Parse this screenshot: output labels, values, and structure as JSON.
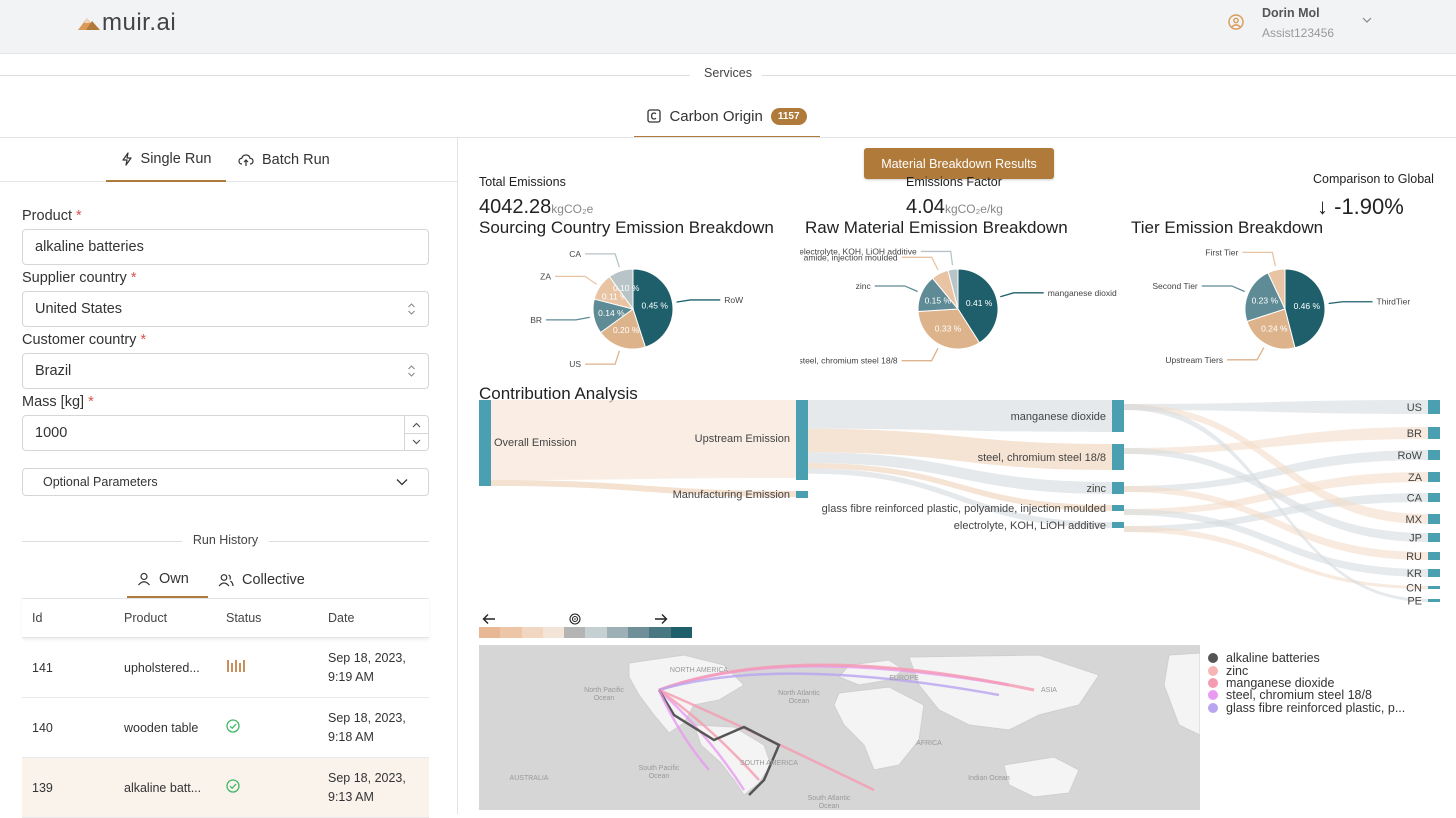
{
  "header": {
    "logo": "muir.ai",
    "user_name": "Dorin Mol",
    "user_sub": "Assist123456"
  },
  "services": {
    "label": "Services",
    "tab_label": "Carbon Origin",
    "tab_badge": "1157"
  },
  "run_tabs": {
    "single": "Single Run",
    "batch": "Batch Run"
  },
  "form": {
    "product_label": "Product",
    "product_value": "alkaline batteries",
    "supplier_label": "Supplier country",
    "supplier_value": "United States",
    "customer_label": "Customer country",
    "customer_value": "Brazil",
    "mass_label": "Mass [kg]",
    "mass_value": "1000",
    "required_mark": "*",
    "optional_label": "Optional Parameters"
  },
  "history": {
    "label": "Run History",
    "tab_own": "Own",
    "tab_collective": "Collective",
    "columns": [
      "Id",
      "Product",
      "Status",
      "Date"
    ],
    "rows": [
      {
        "id": "141",
        "product": "upholstered...",
        "status": "running",
        "date_line1": "Sep 18, 2023,",
        "date_line2": "9:19 AM"
      },
      {
        "id": "140",
        "product": "wooden table",
        "status": "done",
        "date_line1": "Sep 18, 2023,",
        "date_line2": "9:18 AM"
      },
      {
        "id": "139",
        "product": "alkaline batt...",
        "status": "done",
        "date_line1": "Sep 18, 2023,",
        "date_line2": "9:13 AM"
      }
    ]
  },
  "results": {
    "button": "Material Breakdown Results",
    "total_label": "Total Emissions",
    "total_value": "4042.28",
    "total_unit": "kgCO₂e",
    "factor_label": "Emissions Factor",
    "factor_value": "4.04",
    "factor_unit": "kgCO₂e/kg",
    "global_label": "Comparison to Global",
    "global_value": "↓ -1.90%"
  },
  "chart_data": [
    {
      "type": "pie",
      "title": "Sourcing Country Emission Breakdown",
      "slices": [
        {
          "label": "RoW",
          "value": 0.45,
          "text": "0.45 %",
          "color": "#1f5f6b"
        },
        {
          "label": "US",
          "value": 0.2,
          "text": "0.20 %",
          "color": "#ddb38b"
        },
        {
          "label": "BR",
          "value": 0.14,
          "text": "0.14 %",
          "color": "#5e8b95"
        },
        {
          "label": "ZA",
          "value": 0.11,
          "text": "0.11 %",
          "color": "#e8c4a4"
        },
        {
          "label": "CA",
          "value": 0.1,
          "text": "0.10 %",
          "color": "#b9c4c8"
        }
      ]
    },
    {
      "type": "pie",
      "title": "Raw Material Emission Breakdown",
      "slices": [
        {
          "label": "manganese dioxid",
          "value": 0.41,
          "text": "0.41 %",
          "color": "#1f5f6b"
        },
        {
          "label": "steel, chromium steel 18/8",
          "value": 0.33,
          "text": "0.33 %",
          "color": "#ddb38b"
        },
        {
          "label": "zinc",
          "value": 0.15,
          "text": "0.15 %",
          "color": "#5e8b95"
        },
        {
          "label": "amide, injection moulded",
          "value": 0.07,
          "text": "",
          "color": "#e8c4a4"
        },
        {
          "label": "electrolyte, KOH, LiOH additive",
          "value": 0.04,
          "text": "",
          "color": "#b9c4c8"
        }
      ]
    },
    {
      "type": "pie",
      "title": "Tier Emission Breakdown",
      "slices": [
        {
          "label": "ThirdTier",
          "value": 0.46,
          "text": "0.46 %",
          "color": "#1f5f6b"
        },
        {
          "label": "Upstream Tiers",
          "value": 0.24,
          "text": "0.24 %",
          "color": "#ddb38b"
        },
        {
          "label": "Second Tier",
          "value": 0.23,
          "text": "0.23 %",
          "color": "#5e8b95"
        },
        {
          "label": "First Tier",
          "value": 0.07,
          "text": "",
          "color": "#e8c4a4"
        }
      ]
    },
    {
      "type": "sankey",
      "title": "Contribution Analysis",
      "stage1": [
        "Overall Emission"
      ],
      "stage2": [
        "Upstream Emission",
        "Manufacturing Emission"
      ],
      "stage3": [
        "manganese dioxide",
        "steel, chromium steel 18/8",
        "zinc",
        "glass fibre reinforced plastic, polyamide, injection moulded",
        "electrolyte, KOH, LiOH additive"
      ],
      "stage3_values": [
        0.41,
        0.33,
        0.15,
        0.07,
        0.04
      ],
      "stage4": [
        "US",
        "BR",
        "RoW",
        "ZA",
        "CA",
        "MX",
        "JP",
        "RU",
        "KR",
        "CN",
        "PE"
      ]
    }
  ],
  "map": {
    "labels": [
      "NORTH AMERICA",
      "North Pacific Ocean",
      "North Atlantic Ocean",
      "SOUTH AMERICA",
      "South Pacific Ocean",
      "South Atlantic Ocean",
      "AFRICA",
      "ASIA",
      "EUROPE",
      "Indian Ocean",
      "AUSTRALIA"
    ],
    "legend": [
      {
        "label": "alkaline batteries",
        "color": "#555555"
      },
      {
        "label": "zinc",
        "color": "#f5b5b5"
      },
      {
        "label": "manganese dioxide",
        "color": "#f59bb0"
      },
      {
        "label": "steel, chromium steel 18/8",
        "color": "#e89bf0"
      },
      {
        "label": "glass fibre reinforced plastic, p...",
        "color": "#b9a4f0"
      }
    ],
    "scale_colors": [
      "#e8b894",
      "#edc6a8",
      "#f1d6c2",
      "#f3e4d8",
      "#b4b4b4",
      "#c6cfd2",
      "#9cb0b6",
      "#6f9098",
      "#4a7882",
      "#1f5f6b"
    ]
  }
}
